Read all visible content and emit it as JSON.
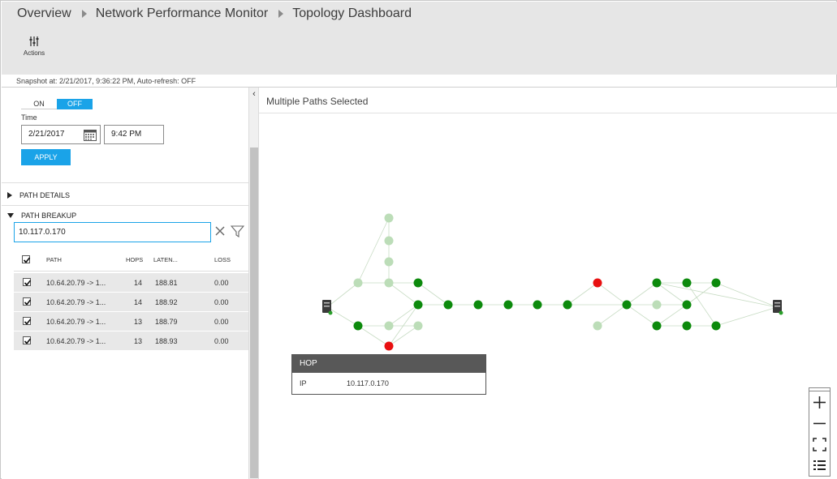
{
  "breadcrumb": [
    "Overview",
    "Network Performance Monitor",
    "Topology Dashboard"
  ],
  "toolbar": {
    "actions_label": "Actions"
  },
  "snapshot_text": "Snapshot at: 2/21/2017, 9:36:22 PM, Auto-refresh: OFF",
  "filters": {
    "toggle_on": "ON",
    "toggle_off": "OFF",
    "time_label": "Time",
    "date_value": "2/21/2017",
    "time_value": "9:42 PM",
    "apply_label": "APPLY"
  },
  "sections": {
    "path_details": "PATH DETAILS",
    "path_breakup": "PATH BREAKUP"
  },
  "search": {
    "value": "10.117.0.170"
  },
  "table": {
    "columns": [
      "PATH",
      "HOPS",
      "LATEN...",
      "LOSS"
    ],
    "rows": [
      {
        "path": "10.64.20.79 -> 1...",
        "hops": "14",
        "latency": "188.81",
        "loss": "0.00"
      },
      {
        "path": "10.64.20.79 -> 1...",
        "hops": "14",
        "latency": "188.92",
        "loss": "0.00"
      },
      {
        "path": "10.64.20.79 -> 1...",
        "hops": "13",
        "latency": "188.79",
        "loss": "0.00"
      },
      {
        "path": "10.64.20.79 -> 1...",
        "hops": "13",
        "latency": "188.93",
        "loss": "0.00"
      }
    ]
  },
  "main": {
    "title": "Multiple Paths Selected",
    "tooltip": {
      "header": "HOP",
      "key": "IP",
      "value": "10.117.0.170"
    }
  },
  "colors": {
    "accent": "#1aa3e8",
    "node_active": "#0c8a0c",
    "node_inactive": "#bcddb8",
    "node_alert": "#e81010"
  },
  "icons": [
    "actions-icon",
    "calendar-icon",
    "clear-icon",
    "filter-icon",
    "server-icon",
    "zoom-in-icon",
    "zoom-out-icon",
    "fit-icon",
    "legend-icon"
  ]
}
